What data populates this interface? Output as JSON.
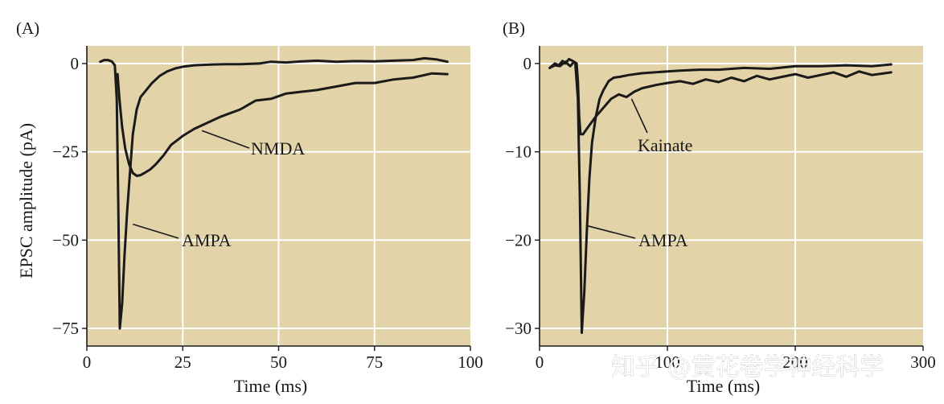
{
  "watermark": "知乎 @黄花卷学神经科学",
  "chart_data": [
    {
      "type": "line",
      "panel_label": "(A)",
      "xlabel": "Time (ms)",
      "ylabel": "EPSC amplitude (pA)",
      "xlim": [
        0,
        100
      ],
      "ylim": [
        -80,
        5
      ],
      "xticks": [
        0,
        25,
        50,
        75,
        100
      ],
      "yticks": [
        0,
        -25,
        -50,
        -75
      ],
      "ytick_labels": [
        "0",
        "−25",
        "−50",
        "−75"
      ],
      "xgrid": [
        25,
        50,
        75
      ],
      "ygrid": [
        0,
        -25,
        -50,
        -75
      ],
      "background": "#e2d3a8",
      "series": [
        {
          "name": "AMPA",
          "x": [
            3.5,
            4.5,
            5.5,
            6.5,
            7.3,
            7.8,
            8.2,
            8.6,
            9.2,
            9.8,
            10.5,
            11.3,
            12,
            13,
            14,
            15.5,
            17,
            19,
            21,
            23,
            25,
            28,
            32,
            36,
            40,
            45,
            48,
            52,
            56,
            60,
            65,
            70,
            75,
            80,
            85,
            88,
            91,
            94
          ],
          "y": [
            0.5,
            1,
            1,
            0.6,
            -0.5,
            -10,
            -40,
            -75,
            -68,
            -55,
            -42,
            -30,
            -20,
            -13,
            -9.5,
            -7.5,
            -5.5,
            -3.5,
            -2.2,
            -1.4,
            -0.9,
            -0.5,
            -0.3,
            -0.2,
            -0.2,
            0,
            0.5,
            0.3,
            0.6,
            0.8,
            0.5,
            0.7,
            0.6,
            0.8,
            1,
            1.5,
            1.2,
            0.5
          ]
        },
        {
          "name": "NMDA",
          "x": [
            8,
            8.5,
            9.2,
            10,
            11,
            12,
            13,
            14,
            15,
            16.5,
            18,
            20,
            22,
            25,
            28,
            31,
            35,
            40,
            44,
            48,
            52,
            56,
            60,
            65,
            70,
            75,
            80,
            85,
            90,
            94
          ],
          "y": [
            -3,
            -10,
            -18,
            -24,
            -28.5,
            -31,
            -31.8,
            -31.6,
            -31,
            -30,
            -28.5,
            -26,
            -23,
            -20.5,
            -18.5,
            -17,
            -15,
            -13,
            -10.5,
            -10,
            -8.5,
            -8,
            -7.5,
            -6.5,
            -5.5,
            -5.5,
            -4.5,
            -4,
            -2.8,
            -3
          ]
        }
      ],
      "annotations": [
        {
          "text": "NMDA",
          "series": "NMDA",
          "x": 30,
          "y": -19
        },
        {
          "text": "AMPA",
          "series": "AMPA",
          "x": 12,
          "y": -45.5
        }
      ]
    },
    {
      "type": "line",
      "panel_label": "(B)",
      "xlabel": "Time (ms)",
      "ylabel": "",
      "xlim": [
        0,
        300
      ],
      "ylim": [
        -32,
        2
      ],
      "xticks": [
        0,
        100,
        200,
        300
      ],
      "xtick_labels": [
        "0",
        "100",
        "200",
        "300"
      ],
      "yticks": [
        0,
        -10,
        -20,
        -30
      ],
      "ytick_labels": [
        "0",
        "−10",
        "−20",
        "−30"
      ],
      "xgrid": [
        100,
        200
      ],
      "ygrid": [
        0,
        -10,
        -20,
        -30
      ],
      "background": "#e2d3a8",
      "series": [
        {
          "name": "AMPA",
          "x": [
            8,
            12,
            15,
            18,
            20,
            23,
            26,
            28,
            30,
            31.5,
            33,
            35,
            37,
            39,
            41,
            44,
            47,
            50,
            54,
            58,
            63,
            70,
            80,
            90,
            100,
            110,
            125,
            140,
            160,
            180,
            200,
            220,
            240,
            260,
            275
          ],
          "y": [
            -0.5,
            0,
            -0.2,
            0.3,
            0,
            0.5,
            0.3,
            0,
            -4,
            -15,
            -30.5,
            -26,
            -19,
            -13,
            -9,
            -6,
            -4,
            -3,
            -2,
            -1.6,
            -1.5,
            -1.3,
            -1.1,
            -1,
            -0.9,
            -0.8,
            -0.7,
            -0.7,
            -0.5,
            -0.6,
            -0.3,
            -0.3,
            -0.2,
            -0.3,
            -0.1
          ]
        },
        {
          "name": "Kainate",
          "x": [
            8,
            12,
            16,
            20,
            24,
            27,
            29,
            30,
            31,
            32,
            34,
            38,
            44,
            50,
            56,
            62,
            68,
            74,
            80,
            86,
            92,
            100,
            110,
            120,
            130,
            140,
            150,
            160,
            170,
            180,
            190,
            200,
            210,
            220,
            230,
            240,
            250,
            260,
            270,
            275
          ],
          "y": [
            -0.5,
            -0.2,
            -0.3,
            0.2,
            -0.3,
            0.2,
            0,
            -2,
            -6,
            -8,
            -8,
            -7.2,
            -6,
            -5,
            -4,
            -3.5,
            -3.8,
            -3.2,
            -2.8,
            -2.6,
            -2.4,
            -2.2,
            -2.0,
            -2.3,
            -1.8,
            -2.1,
            -1.6,
            -2.0,
            -1.4,
            -1.8,
            -1.5,
            -1.2,
            -1.6,
            -1.3,
            -1.0,
            -1.5,
            -0.9,
            -1.3,
            -1.1,
            -1.0
          ]
        }
      ],
      "annotations": [
        {
          "text": "Kainate",
          "series": "Kainate",
          "x": 72,
          "y": -4
        },
        {
          "text": "AMPA",
          "series": "AMPA",
          "x": 38,
          "y": -18.4
        }
      ]
    }
  ]
}
